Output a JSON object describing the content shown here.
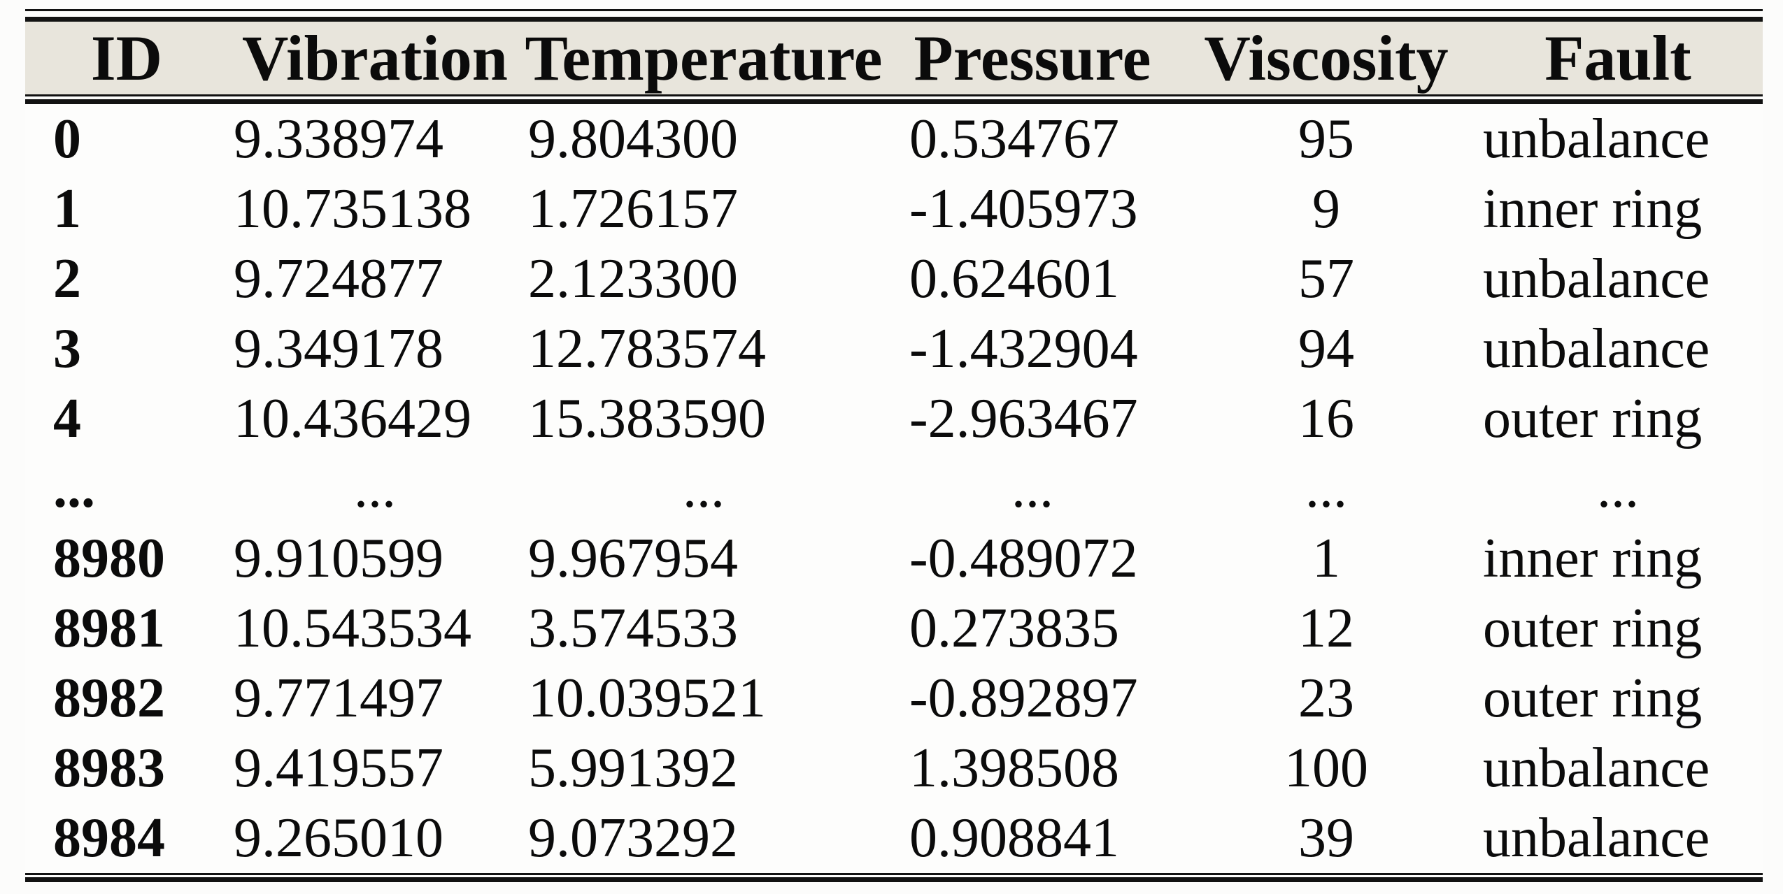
{
  "colors": {
    "header_bg": "#e8e5dc",
    "rule": "#121212",
    "text": "#0b0b0b",
    "page_bg": "#fcfcfb"
  },
  "table": {
    "columns": [
      {
        "key": "id",
        "label": "ID"
      },
      {
        "key": "vibration",
        "label": "Vibration"
      },
      {
        "key": "temperature",
        "label": "Temperature"
      },
      {
        "key": "pressure",
        "label": "Pressure"
      },
      {
        "key": "viscosity",
        "label": "Viscosity"
      },
      {
        "key": "fault",
        "label": "Fault"
      }
    ],
    "rows": [
      {
        "ellipsis": false,
        "cells": [
          "0",
          "9.338974",
          "9.804300",
          "0.534767",
          "95",
          "unbalance"
        ]
      },
      {
        "ellipsis": false,
        "cells": [
          "1",
          "10.735138",
          "1.726157",
          "-1.405973",
          "9",
          "inner ring"
        ]
      },
      {
        "ellipsis": false,
        "cells": [
          "2",
          "9.724877",
          "2.123300",
          "0.624601",
          "57",
          "unbalance"
        ]
      },
      {
        "ellipsis": false,
        "cells": [
          "3",
          "9.349178",
          "12.783574",
          "-1.432904",
          "94",
          "unbalance"
        ]
      },
      {
        "ellipsis": false,
        "cells": [
          "4",
          "10.436429",
          "15.383590",
          "-2.963467",
          "16",
          "outer ring"
        ]
      },
      {
        "ellipsis": true,
        "cells": [
          "...",
          "...",
          "...",
          "...",
          "...",
          "..."
        ]
      },
      {
        "ellipsis": false,
        "cells": [
          "8980",
          "9.910599",
          "9.967954",
          "-0.489072",
          "1",
          "inner ring"
        ]
      },
      {
        "ellipsis": false,
        "cells": [
          "8981",
          "10.543534",
          "3.574533",
          "0.273835",
          "12",
          "outer ring"
        ]
      },
      {
        "ellipsis": false,
        "cells": [
          "8982",
          "9.771497",
          "10.039521",
          "-0.892897",
          "23",
          "outer ring"
        ]
      },
      {
        "ellipsis": false,
        "cells": [
          "8983",
          "9.419557",
          "5.991392",
          "1.398508",
          "100",
          "unbalance"
        ]
      },
      {
        "ellipsis": false,
        "cells": [
          "8984",
          "9.265010",
          "9.073292",
          "0.908841",
          "39",
          "unbalance"
        ]
      }
    ]
  }
}
